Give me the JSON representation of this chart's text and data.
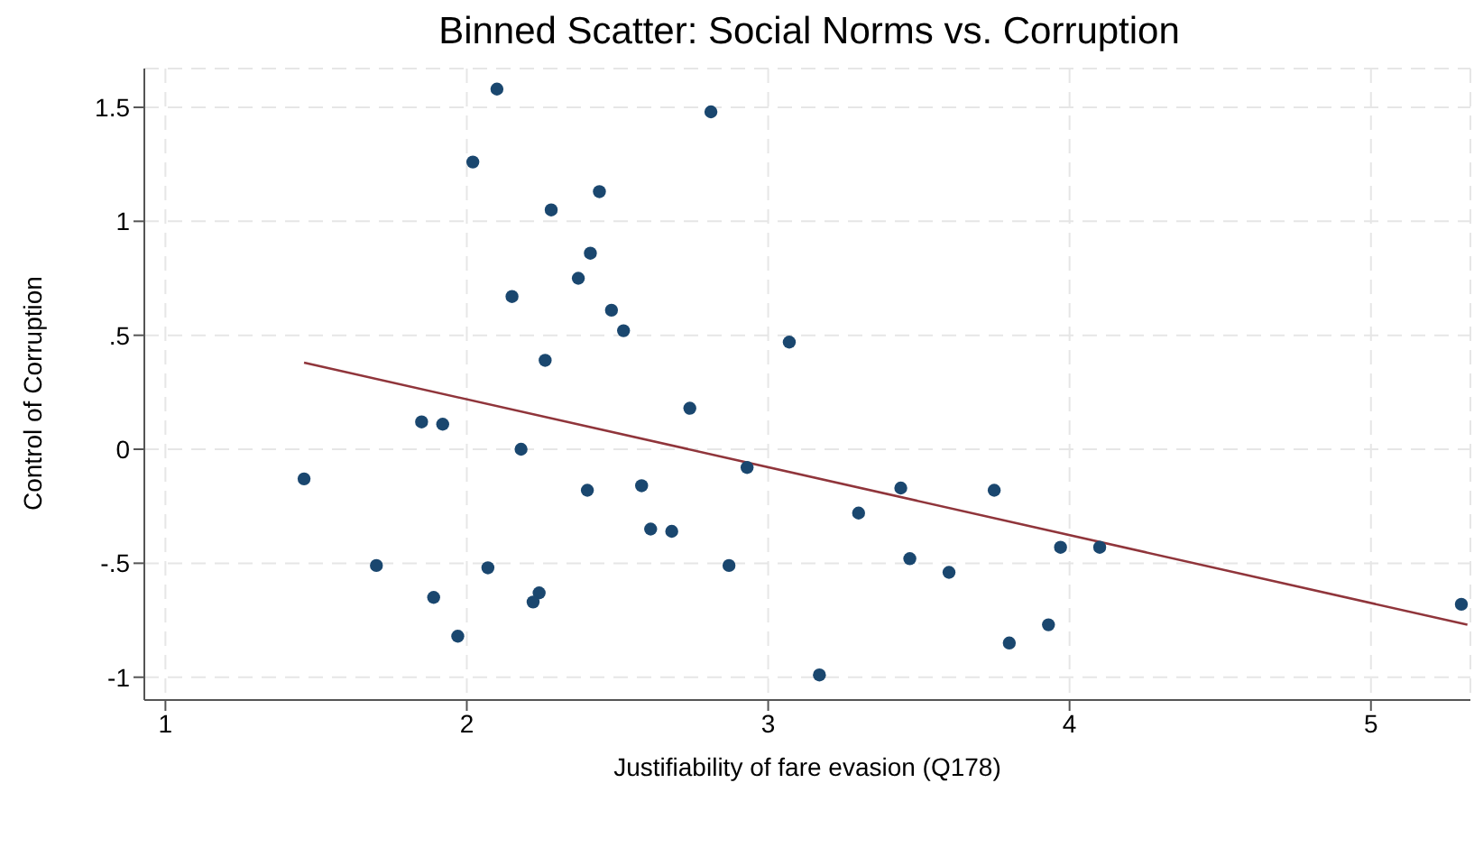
{
  "chart_data": {
    "type": "scatter",
    "title": "Binned Scatter: Social Norms vs. Corruption",
    "xlabel": "Justifiability of fare evasion (Q178)",
    "ylabel": "Control of Corruption",
    "xlim": [
      0.93,
      5.33
    ],
    "xticks": [
      1,
      2,
      3,
      4,
      5
    ],
    "ylim": [
      -1.1,
      1.67
    ],
    "yticks": [
      {
        "value": 1.5,
        "label": "1.5"
      },
      {
        "value": 1,
        "label": "1"
      },
      {
        "value": 0.5,
        "label": ".5"
      },
      {
        "value": 0,
        "label": "0"
      },
      {
        "value": -0.5,
        "label": "-.5"
      },
      {
        "value": -1,
        "label": "-1"
      }
    ],
    "grid": true,
    "marker": "circle",
    "series": [
      {
        "color": "#1a476f",
        "x": [
          2.1,
          2.81,
          2.02,
          2.28,
          2.44,
          2.41,
          2.37,
          2.15,
          2.48,
          2.52,
          3.07,
          2.26,
          2.74,
          1.85,
          1.92,
          2.18,
          2.93,
          1.46,
          2.58,
          2.4,
          3.44,
          3.75,
          2.61,
          2.68,
          3.3,
          3.47,
          3.6,
          3.97,
          4.1,
          1.7,
          2.07,
          2.87,
          1.89,
          2.24,
          2.22,
          1.97,
          3.8,
          3.93,
          3.17,
          5.3
        ],
        "values": [
          1.58,
          1.48,
          1.26,
          1.05,
          1.13,
          0.86,
          0.75,
          0.67,
          0.61,
          0.52,
          0.47,
          0.39,
          0.18,
          0.12,
          0.11,
          0.0,
          -0.08,
          -0.13,
          -0.16,
          -0.18,
          -0.17,
          -0.18,
          -0.35,
          -0.36,
          -0.28,
          -0.48,
          -0.54,
          -0.43,
          -0.43,
          -0.51,
          -0.52,
          -0.51,
          -0.65,
          -0.63,
          -0.67,
          -0.82,
          -0.85,
          -0.77,
          -0.99,
          -0.68
        ]
      },
      {
        "type": "line",
        "color": "#90353b",
        "marker": "none",
        "x": [
          1.46,
          5.32
        ],
        "values": [
          0.38,
          -0.77
        ]
      }
    ]
  }
}
